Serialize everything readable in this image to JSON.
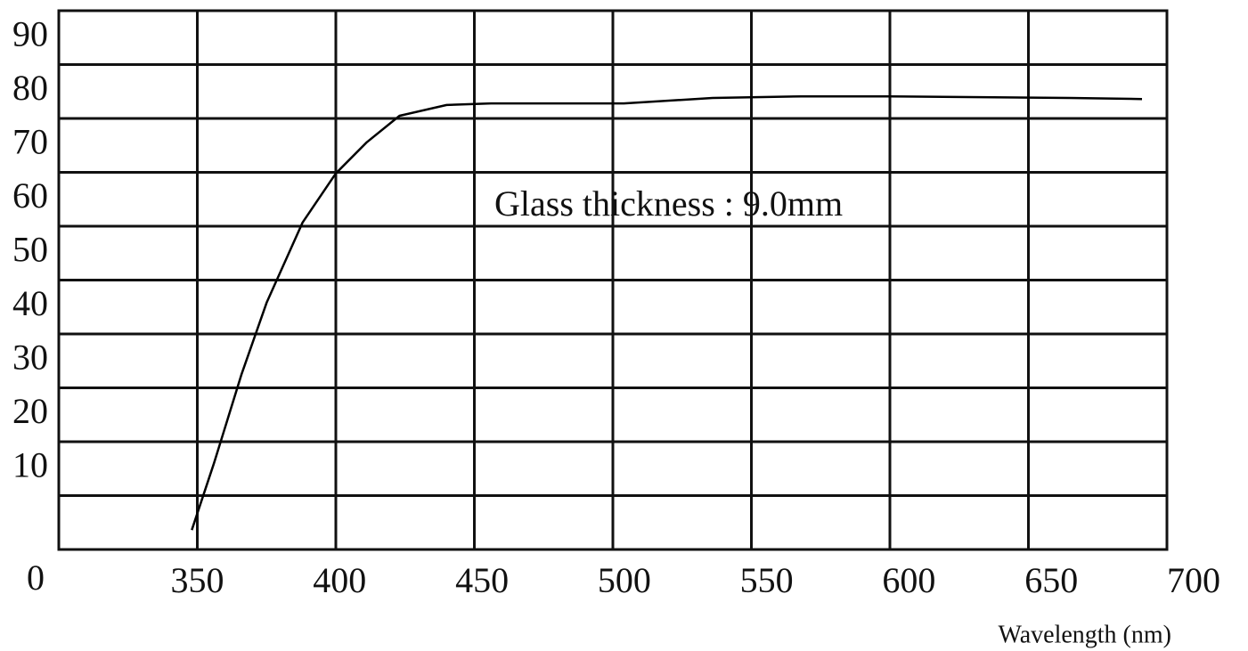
{
  "chart_data": {
    "type": "line",
    "annotation": "Glass thickness : 9.0mm",
    "x_label": "Wavelength (nm)",
    "x": [
      348,
      356,
      366,
      375,
      388,
      400,
      411,
      423,
      440,
      456,
      488,
      504,
      536,
      568,
      600,
      665,
      691
    ],
    "values": [
      3.6,
      16,
      32.6,
      45.8,
      60.7,
      69.8,
      75.5,
      80.5,
      82.5,
      82.8,
      82.8,
      82.8,
      83.8,
      84.1,
      84.1,
      83.8,
      83.6
    ],
    "color": "#000000",
    "xlim": [
      300,
      700
    ],
    "xticks": [
      350,
      400,
      450,
      500,
      550,
      600,
      650,
      700
    ],
    "ylim": [
      0,
      100
    ],
    "yticks": [
      0,
      10,
      20,
      30,
      40,
      50,
      60,
      70,
      80,
      90
    ],
    "grid": true
  }
}
